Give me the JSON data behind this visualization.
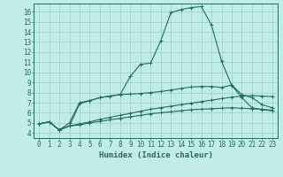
{
  "bg_color": "#c2ece6",
  "grid_color": "#9dd4cc",
  "line_color": "#1e6e62",
  "xlabel": "Humidex (Indice chaleur)",
  "xlabel_fontsize": 6.5,
  "tick_fontsize": 5.5,
  "xlim": [
    -0.5,
    23.5
  ],
  "ylim": [
    3.5,
    16.8
  ],
  "xticks": [
    0,
    1,
    2,
    3,
    4,
    5,
    6,
    7,
    8,
    9,
    10,
    11,
    12,
    13,
    14,
    15,
    16,
    17,
    18,
    19,
    20,
    21,
    22,
    23
  ],
  "yticks": [
    4,
    5,
    6,
    7,
    8,
    9,
    10,
    11,
    12,
    13,
    14,
    15,
    16
  ],
  "line1_x": [
    0,
    1,
    2,
    3,
    4,
    5,
    6,
    7,
    8,
    9,
    10,
    11,
    12,
    13,
    14,
    15,
    16,
    17,
    18,
    19,
    20,
    21,
    22,
    23
  ],
  "line1_y": [
    4.9,
    5.1,
    4.3,
    4.7,
    4.8,
    5.0,
    5.15,
    5.3,
    5.45,
    5.6,
    5.75,
    5.9,
    6.0,
    6.1,
    6.2,
    6.3,
    6.35,
    6.4,
    6.45,
    6.5,
    6.45,
    6.4,
    6.35,
    6.25
  ],
  "line2_x": [
    0,
    1,
    2,
    3,
    4,
    5,
    6,
    7,
    8,
    9,
    10,
    11,
    12,
    13,
    14,
    15,
    16,
    17,
    18,
    19,
    20,
    21,
    22,
    23
  ],
  "line2_y": [
    4.9,
    5.1,
    4.3,
    5.0,
    7.0,
    7.2,
    7.5,
    7.65,
    7.8,
    9.6,
    10.8,
    10.9,
    13.1,
    15.9,
    16.2,
    16.4,
    16.5,
    14.7,
    11.1,
    8.7,
    7.5,
    6.5,
    6.3,
    6.2
  ],
  "line3_x": [
    0,
    1,
    2,
    3,
    4,
    5,
    6,
    7,
    8,
    9,
    10,
    11,
    12,
    13,
    14,
    15,
    16,
    17,
    18,
    19,
    20,
    21,
    22,
    23
  ],
  "line3_y": [
    4.9,
    5.1,
    4.3,
    4.7,
    6.9,
    7.2,
    7.5,
    7.65,
    7.8,
    7.85,
    7.9,
    8.0,
    8.1,
    8.25,
    8.4,
    8.55,
    8.6,
    8.6,
    8.5,
    8.75,
    7.8,
    7.5,
    6.8,
    6.5
  ],
  "line4_x": [
    0,
    1,
    2,
    3,
    4,
    5,
    6,
    7,
    8,
    9,
    10,
    11,
    12,
    13,
    14,
    15,
    16,
    17,
    18,
    19,
    20,
    21,
    22,
    23
  ],
  "line4_y": [
    4.9,
    5.1,
    4.3,
    4.7,
    4.9,
    5.1,
    5.35,
    5.55,
    5.75,
    5.95,
    6.15,
    6.35,
    6.5,
    6.65,
    6.8,
    6.95,
    7.1,
    7.25,
    7.4,
    7.55,
    7.65,
    7.7,
    7.65,
    7.6
  ]
}
